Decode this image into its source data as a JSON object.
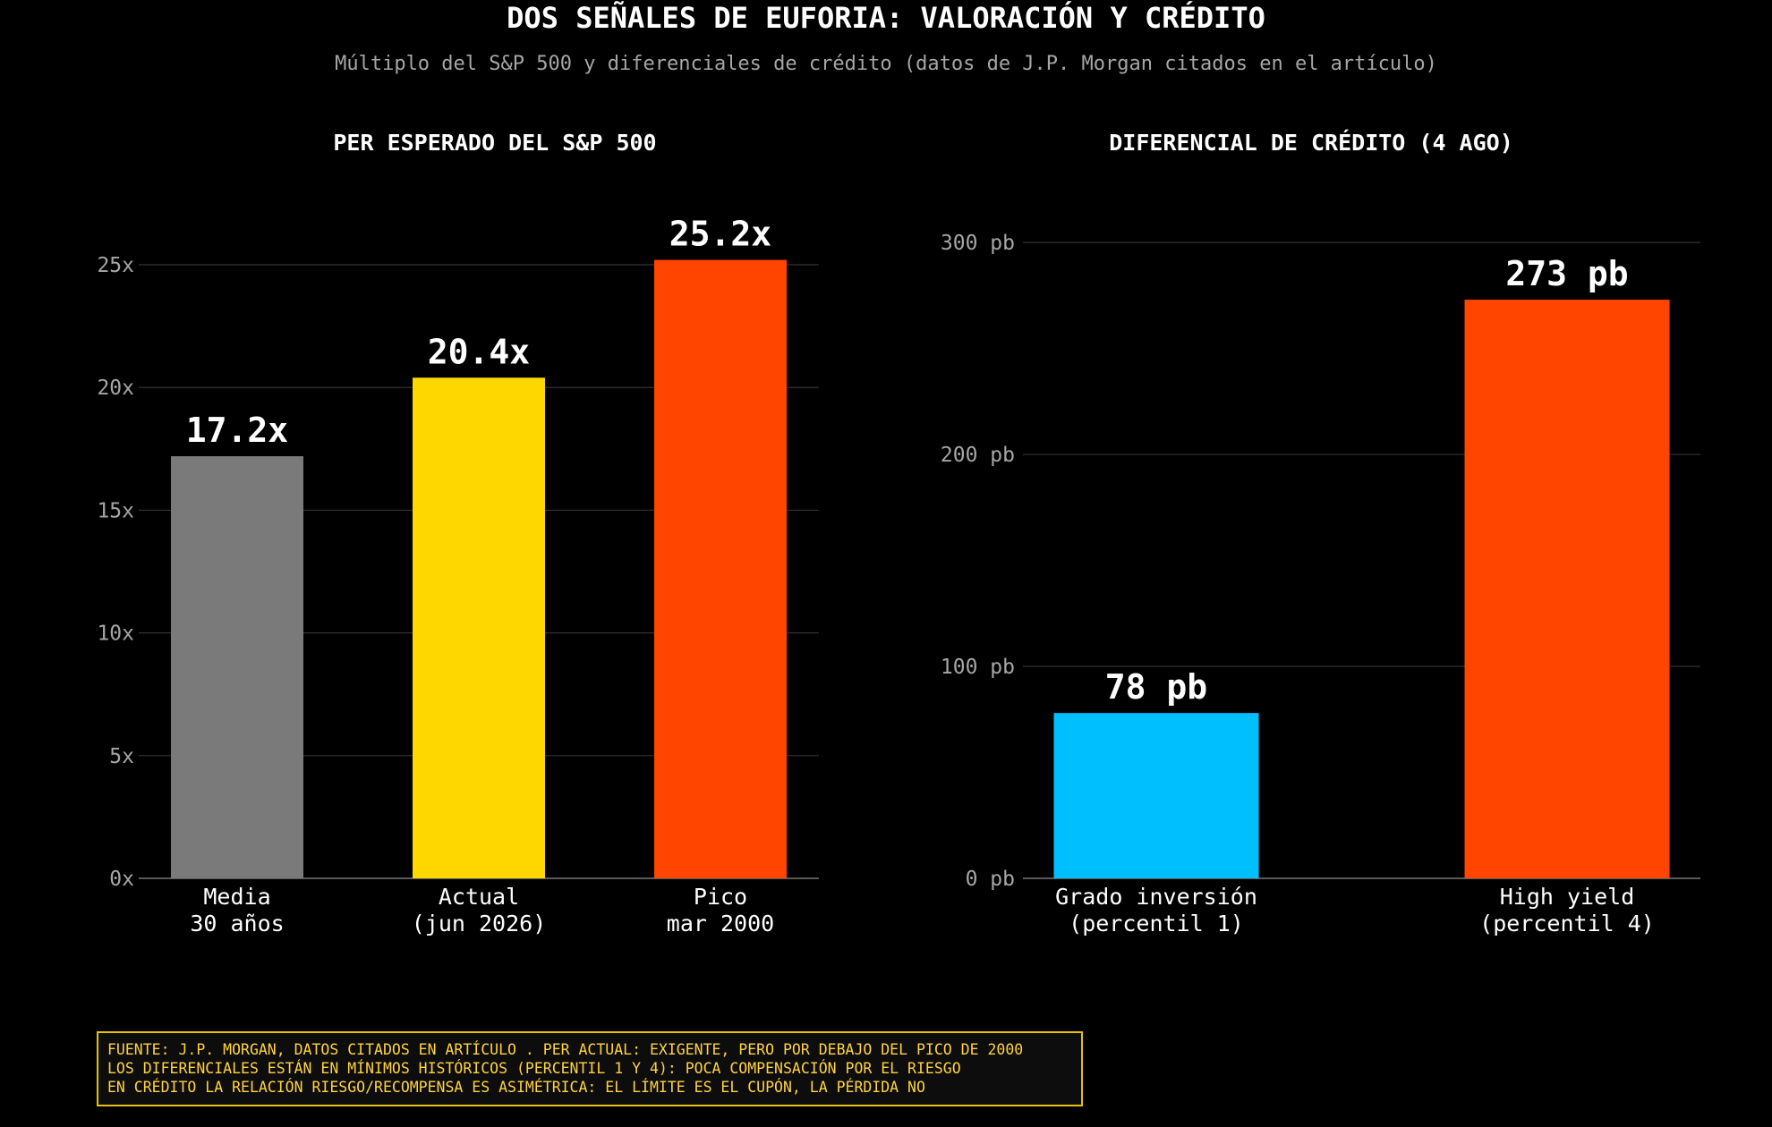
{
  "title": "DOS SEÑALES DE EUFORIA: VALORACIÓN Y CRÉDITO",
  "subtitle": "Múltiplo del S&P 500 y diferenciales de crédito (datos de J.P. Morgan citados en el artículo)",
  "chart_data": [
    {
      "type": "bar",
      "title": "PER ESPERADO DEL S&P 500",
      "categories": [
        [
          "Media",
          "30 años"
        ],
        [
          "Actual",
          "(jun 2026)"
        ],
        [
          "Pico",
          "mar 2000"
        ]
      ],
      "values": [
        17.2,
        20.4,
        25.2
      ],
      "value_labels": [
        "17.2x",
        "20.4x",
        "25.2x"
      ],
      "colors": [
        "#7a7a7a",
        "#ffd700",
        "#ff4500"
      ],
      "ylim": [
        0,
        28.5
      ],
      "yticks": [
        0,
        5,
        10,
        15,
        20,
        25
      ],
      "ytick_labels": [
        "0x",
        "5x",
        "10x",
        "15x",
        "20x",
        "25x"
      ],
      "grid": true
    },
    {
      "type": "bar",
      "title": "DIFERENCIAL DE CRÉDITO (4 AGO)",
      "categories": [
        [
          "Grado inversión",
          "(percentil 1)"
        ],
        [
          "High yield",
          "(percentil 4)"
        ]
      ],
      "values": [
        78,
        273
      ],
      "value_labels": [
        "78 pb",
        "273 pb"
      ],
      "colors": [
        "#00bfff",
        "#ff4500"
      ],
      "ylim": [
        0,
        330
      ],
      "yticks": [
        0,
        100,
        200,
        300
      ],
      "ytick_labels": [
        "0 pb",
        "100 pb",
        "200 pb",
        "300 pb"
      ],
      "grid": true
    }
  ],
  "note_lines": [
    "FUENTE: J.P. MORGAN, DATOS CITADOS EN ARTÍCULO . PER ACTUAL: EXIGENTE, PERO POR DEBAJO DEL PICO DE 2000",
    "LOS DIFERENCIALES ESTÁN EN MÍNIMOS HISTÓRICOS (PERCENTIL 1 Y 4): POCA COMPENSACIÓN POR EL RIESGO",
    "EN CRÉDITO LA RELACIÓN RIESGO/RECOMPENSA ES ASIMÉTRICA: EL LÍMITE ES EL CUPÓN, LA PÉRDIDA NO"
  ],
  "colors": {
    "background": "#000000",
    "grid": "#333333",
    "axis": "#777777",
    "note_border": "#e6c200",
    "note_text": "#ffd23f"
  }
}
